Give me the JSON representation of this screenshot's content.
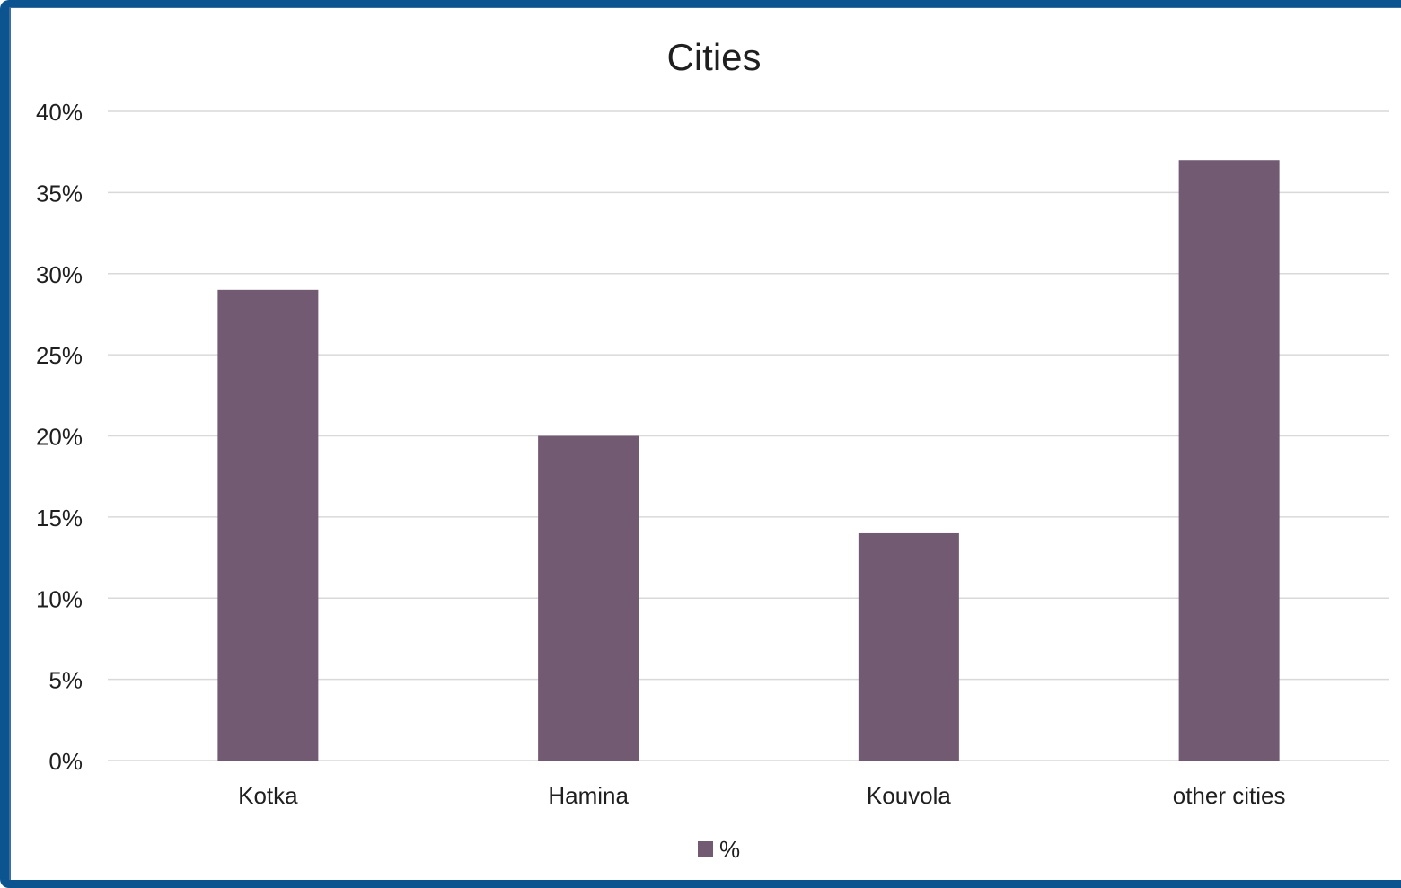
{
  "chart_data": {
    "type": "bar",
    "title": "Cities",
    "categories": [
      "Kotka",
      "Hamina",
      "Kouvola",
      "other cities"
    ],
    "series": [
      {
        "name": "%",
        "values": [
          29,
          20,
          14,
          37
        ]
      }
    ],
    "ylim": [
      0,
      40
    ],
    "yticks": [
      "0%",
      "5%",
      "10%",
      "15%",
      "20%",
      "25%",
      "30%",
      "35%",
      "40%"
    ],
    "ytick_values": [
      0,
      5,
      10,
      15,
      20,
      25,
      30,
      35,
      40
    ],
    "grid": true,
    "legend_position": "bottom",
    "bar_color": "#725a72",
    "frame_color": "#0c5490"
  }
}
